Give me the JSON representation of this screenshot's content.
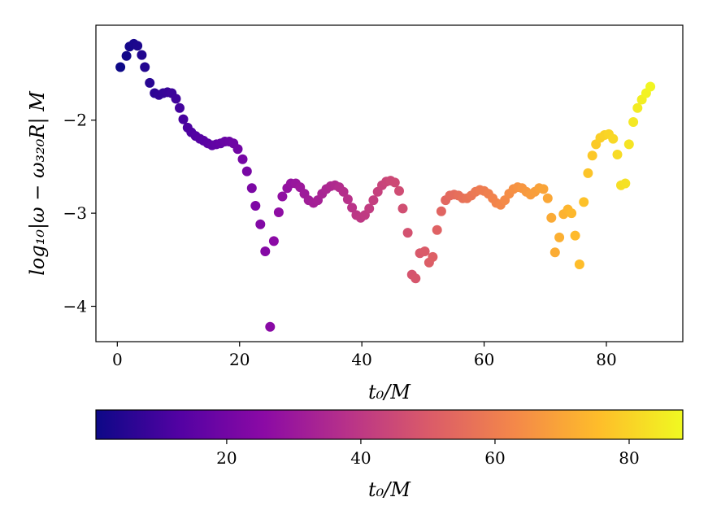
{
  "chart_data": {
    "type": "scatter",
    "title": "",
    "xlabel": "t₀/M",
    "ylabel": "log₁₀|ω − ω₃₂₀R| M",
    "xlim": [
      -3.5,
      92.5
    ],
    "ylim": [
      -4.38,
      -0.98
    ],
    "xticks": [
      0,
      20,
      40,
      60,
      80
    ],
    "yticks": [
      -2,
      -3,
      -4
    ],
    "grid": false,
    "colormap": "plasma",
    "color_by": "x",
    "colorbar": {
      "label": "t₀/M",
      "range": [
        0.5,
        88
      ],
      "ticks": [
        20,
        40,
        60,
        80
      ],
      "colors": [
        "#0d0887",
        "#5302a3",
        "#8b0aa5",
        "#b83289",
        "#db5c68",
        "#f48849",
        "#febd2a",
        "#f0f921"
      ]
    },
    "points": [
      {
        "x": 0.5,
        "y": -1.43
      },
      {
        "x": 1.5,
        "y": -1.31
      },
      {
        "x": 2.0,
        "y": -1.21
      },
      {
        "x": 2.7,
        "y": -1.18
      },
      {
        "x": 3.3,
        "y": -1.2
      },
      {
        "x": 4.0,
        "y": -1.3
      },
      {
        "x": 4.5,
        "y": -1.43
      },
      {
        "x": 5.3,
        "y": -1.6
      },
      {
        "x": 6.1,
        "y": -1.71
      },
      {
        "x": 6.8,
        "y": -1.73
      },
      {
        "x": 7.5,
        "y": -1.71
      },
      {
        "x": 8.2,
        "y": -1.7
      },
      {
        "x": 8.9,
        "y": -1.71
      },
      {
        "x": 9.6,
        "y": -1.77
      },
      {
        "x": 10.2,
        "y": -1.87
      },
      {
        "x": 10.8,
        "y": -1.99
      },
      {
        "x": 11.5,
        "y": -2.08
      },
      {
        "x": 12.1,
        "y": -2.13
      },
      {
        "x": 12.8,
        "y": -2.17
      },
      {
        "x": 13.5,
        "y": -2.2
      },
      {
        "x": 14.1,
        "y": -2.22
      },
      {
        "x": 14.8,
        "y": -2.25
      },
      {
        "x": 15.5,
        "y": -2.27
      },
      {
        "x": 16.2,
        "y": -2.26
      },
      {
        "x": 16.9,
        "y": -2.25
      },
      {
        "x": 17.6,
        "y": -2.23
      },
      {
        "x": 18.3,
        "y": -2.23
      },
      {
        "x": 19.0,
        "y": -2.25
      },
      {
        "x": 19.7,
        "y": -2.31
      },
      {
        "x": 20.5,
        "y": -2.42
      },
      {
        "x": 21.2,
        "y": -2.55
      },
      {
        "x": 22.0,
        "y": -2.73
      },
      {
        "x": 22.6,
        "y": -2.92
      },
      {
        "x": 23.4,
        "y": -3.12
      },
      {
        "x": 24.2,
        "y": -3.41
      },
      {
        "x": 25.0,
        "y": -4.22
      },
      {
        "x": 25.6,
        "y": -3.3
      },
      {
        "x": 26.4,
        "y": -2.99
      },
      {
        "x": 27.0,
        "y": -2.82
      },
      {
        "x": 27.8,
        "y": -2.73
      },
      {
        "x": 28.4,
        "y": -2.68
      },
      {
        "x": 29.2,
        "y": -2.68
      },
      {
        "x": 29.9,
        "y": -2.72
      },
      {
        "x": 30.6,
        "y": -2.79
      },
      {
        "x": 31.3,
        "y": -2.86
      },
      {
        "x": 32.1,
        "y": -2.89
      },
      {
        "x": 32.8,
        "y": -2.86
      },
      {
        "x": 33.5,
        "y": -2.79
      },
      {
        "x": 34.2,
        "y": -2.74
      },
      {
        "x": 34.9,
        "y": -2.71
      },
      {
        "x": 35.6,
        "y": -2.7
      },
      {
        "x": 36.3,
        "y": -2.72
      },
      {
        "x": 37.0,
        "y": -2.77
      },
      {
        "x": 37.7,
        "y": -2.85
      },
      {
        "x": 38.4,
        "y": -2.94
      },
      {
        "x": 39.1,
        "y": -3.02
      },
      {
        "x": 39.8,
        "y": -3.05
      },
      {
        "x": 40.5,
        "y": -3.02
      },
      {
        "x": 41.2,
        "y": -2.95
      },
      {
        "x": 41.9,
        "y": -2.86
      },
      {
        "x": 42.6,
        "y": -2.77
      },
      {
        "x": 43.3,
        "y": -2.7
      },
      {
        "x": 44.0,
        "y": -2.66
      },
      {
        "x": 44.7,
        "y": -2.65
      },
      {
        "x": 45.4,
        "y": -2.67
      },
      {
        "x": 46.1,
        "y": -2.76
      },
      {
        "x": 46.7,
        "y": -2.95
      },
      {
        "x": 47.5,
        "y": -3.21
      },
      {
        "x": 48.2,
        "y": -3.66
      },
      {
        "x": 48.8,
        "y": -3.7
      },
      {
        "x": 49.5,
        "y": -3.43
      },
      {
        "x": 50.3,
        "y": -3.41
      },
      {
        "x": 51.0,
        "y": -3.53
      },
      {
        "x": 51.6,
        "y": -3.47
      },
      {
        "x": 52.3,
        "y": -3.18
      },
      {
        "x": 53.0,
        "y": -2.98
      },
      {
        "x": 53.7,
        "y": -2.86
      },
      {
        "x": 54.4,
        "y": -2.81
      },
      {
        "x": 55.1,
        "y": -2.8
      },
      {
        "x": 55.8,
        "y": -2.81
      },
      {
        "x": 56.5,
        "y": -2.84
      },
      {
        "x": 57.2,
        "y": -2.84
      },
      {
        "x": 57.9,
        "y": -2.81
      },
      {
        "x": 58.6,
        "y": -2.77
      },
      {
        "x": 59.3,
        "y": -2.75
      },
      {
        "x": 60.0,
        "y": -2.76
      },
      {
        "x": 60.7,
        "y": -2.79
      },
      {
        "x": 61.4,
        "y": -2.84
      },
      {
        "x": 62.0,
        "y": -2.89
      },
      {
        "x": 62.7,
        "y": -2.91
      },
      {
        "x": 63.4,
        "y": -2.86
      },
      {
        "x": 64.1,
        "y": -2.79
      },
      {
        "x": 64.8,
        "y": -2.74
      },
      {
        "x": 65.5,
        "y": -2.72
      },
      {
        "x": 66.2,
        "y": -2.73
      },
      {
        "x": 66.9,
        "y": -2.77
      },
      {
        "x": 67.6,
        "y": -2.8
      },
      {
        "x": 68.3,
        "y": -2.77
      },
      {
        "x": 69.0,
        "y": -2.73
      },
      {
        "x": 69.7,
        "y": -2.74
      },
      {
        "x": 70.4,
        "y": -2.84
      },
      {
        "x": 71.0,
        "y": -3.05
      },
      {
        "x": 71.6,
        "y": -3.42
      },
      {
        "x": 72.3,
        "y": -3.26
      },
      {
        "x": 73.0,
        "y": -3.01
      },
      {
        "x": 73.7,
        "y": -2.96
      },
      {
        "x": 74.3,
        "y": -3.0
      },
      {
        "x": 74.9,
        "y": -3.24
      },
      {
        "x": 75.6,
        "y": -3.55
      },
      {
        "x": 76.3,
        "y": -2.88
      },
      {
        "x": 77.0,
        "y": -2.57
      },
      {
        "x": 77.7,
        "y": -2.38
      },
      {
        "x": 78.3,
        "y": -2.26
      },
      {
        "x": 79.0,
        "y": -2.19
      },
      {
        "x": 79.7,
        "y": -2.16
      },
      {
        "x": 80.4,
        "y": -2.15
      },
      {
        "x": 81.1,
        "y": -2.2
      },
      {
        "x": 81.8,
        "y": -2.37
      },
      {
        "x": 82.4,
        "y": -2.7
      },
      {
        "x": 83.1,
        "y": -2.68
      },
      {
        "x": 83.7,
        "y": -2.26
      },
      {
        "x": 84.4,
        "y": -2.02
      },
      {
        "x": 85.1,
        "y": -1.87
      },
      {
        "x": 85.8,
        "y": -1.78
      },
      {
        "x": 86.5,
        "y": -1.71
      },
      {
        "x": 87.2,
        "y": -1.64
      }
    ]
  }
}
